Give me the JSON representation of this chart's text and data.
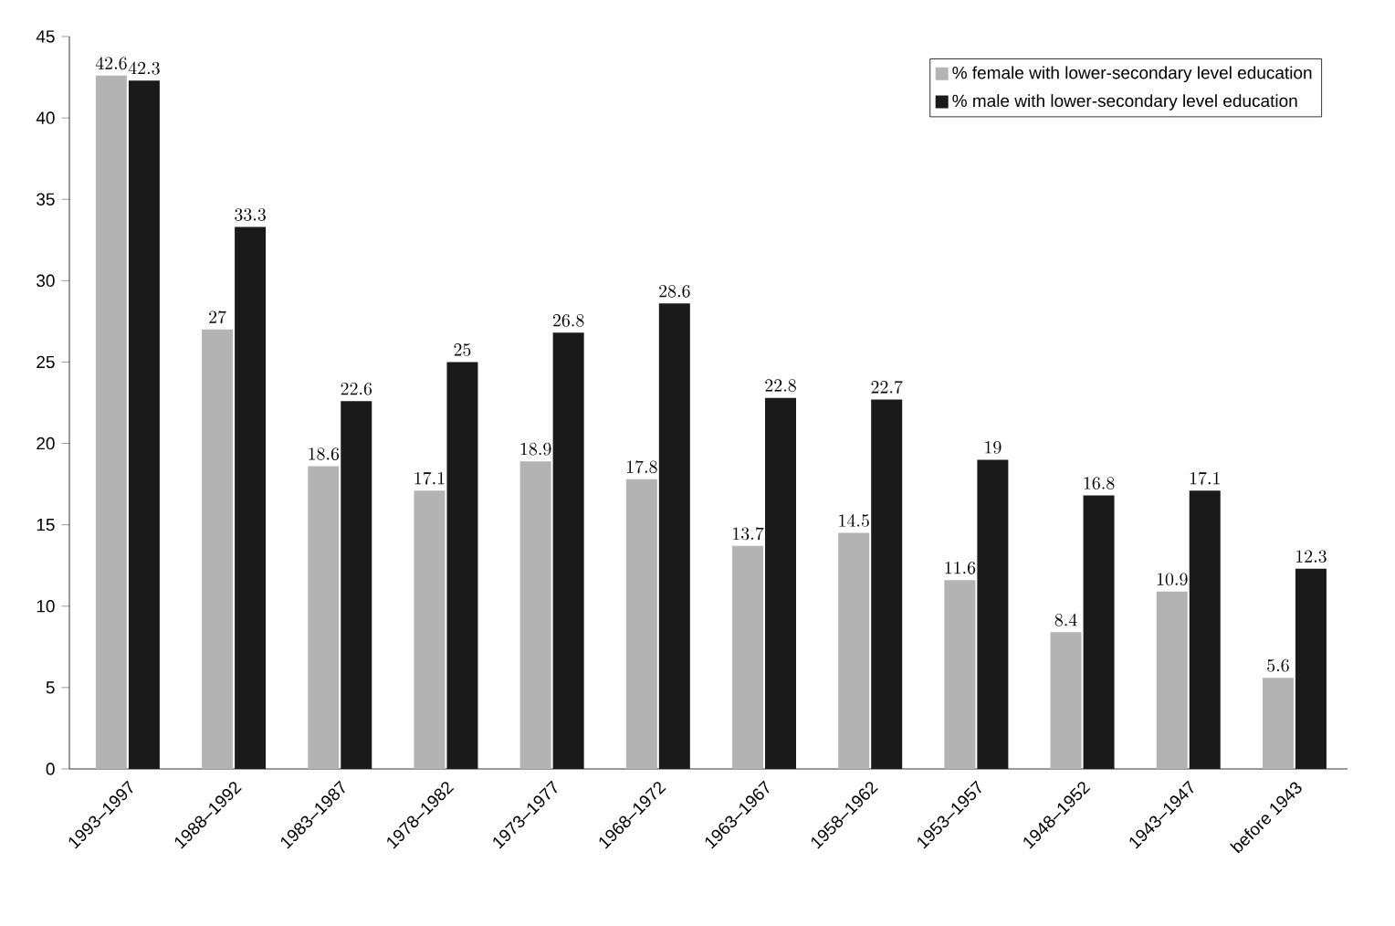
{
  "chart_data": {
    "type": "bar",
    "categories": [
      "1993–1997",
      "1988–1992",
      "1983–1987",
      "1978–1982",
      "1973–1977",
      "1968–1972",
      "1963–1967",
      "1958–1962",
      "1953–1957",
      "1948–1952",
      "1943–1947",
      "before 1943"
    ],
    "series": [
      {
        "name": "% female with lower-secondary level education",
        "color": "#b3b3b3",
        "values": [
          42.6,
          27,
          18.6,
          17.1,
          18.9,
          17.8,
          13.7,
          14.5,
          11.6,
          8.4,
          10.9,
          5.6
        ]
      },
      {
        "name": "% male with lower-secondary level education",
        "color": "#1a1a1a",
        "values": [
          42.3,
          33.3,
          22.6,
          25,
          26.8,
          28.6,
          22.8,
          22.7,
          19,
          16.8,
          17.1,
          12.3
        ]
      }
    ],
    "ylim": [
      0,
      45
    ],
    "yticks": [
      0,
      5,
      10,
      15,
      20,
      25,
      30,
      35,
      40,
      45
    ],
    "data_labels": true,
    "legend": "top right",
    "grid": false
  }
}
